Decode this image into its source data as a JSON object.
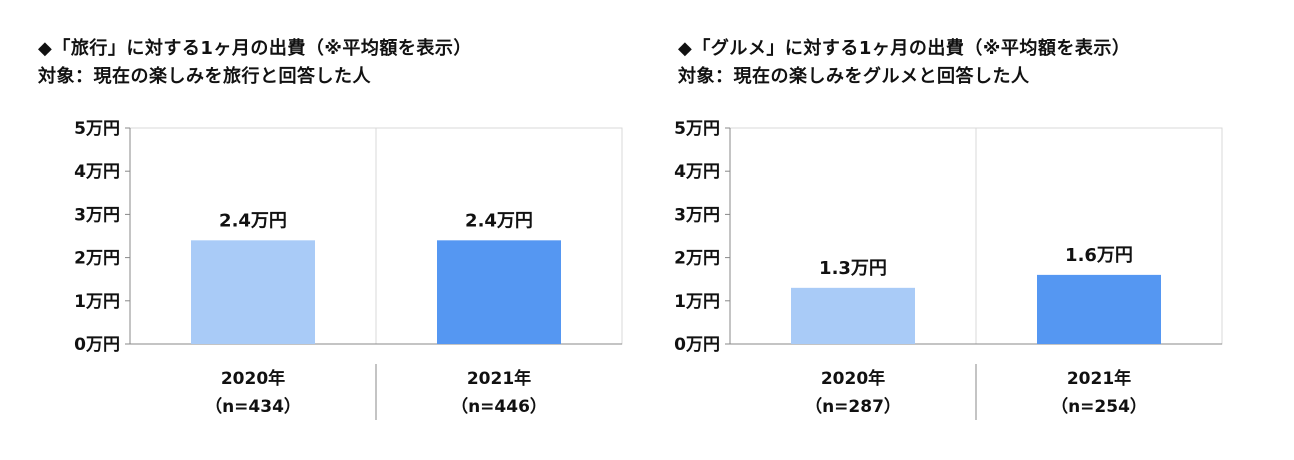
{
  "chart_data": [
    {
      "type": "bar",
      "title": "◆「旅行」に対する1ヶ月の出費（※平均額を表示）",
      "subtitle": "対象：現在の楽しみを旅行と回答した人",
      "unit": "万円",
      "categories": [
        "2020年",
        "2021年"
      ],
      "category_sublabels": [
        "（n=434）",
        "（n=446）"
      ],
      "values": [
        2.4,
        2.4
      ],
      "data_labels": [
        "2.4万円",
        "2.4万円"
      ],
      "bar_colors": [
        "#a9cbf7",
        "#5597f2"
      ],
      "ylim": [
        0,
        5
      ],
      "yticks": [
        0,
        1,
        2,
        3,
        4,
        5
      ],
      "ytick_labels": [
        "0万円",
        "1万円",
        "2万円",
        "3万円",
        "4万円",
        "5万円"
      ],
      "grid": false
    },
    {
      "type": "bar",
      "title": "◆「グルメ」に対する1ヶ月の出費（※平均額を表示）",
      "subtitle": "対象：現在の楽しみをグルメと回答した人",
      "unit": "万円",
      "categories": [
        "2020年",
        "2021年"
      ],
      "category_sublabels": [
        "（n=287）",
        "（n=254）"
      ],
      "values": [
        1.3,
        1.6
      ],
      "data_labels": [
        "1.3万円",
        "1.6万円"
      ],
      "bar_colors": [
        "#a9cbf7",
        "#5597f2"
      ],
      "ylim": [
        0,
        5
      ],
      "yticks": [
        0,
        1,
        2,
        3,
        4,
        5
      ],
      "ytick_labels": [
        "0万円",
        "1万円",
        "2万円",
        "3万円",
        "4万円",
        "5万円"
      ],
      "grid": false
    }
  ]
}
